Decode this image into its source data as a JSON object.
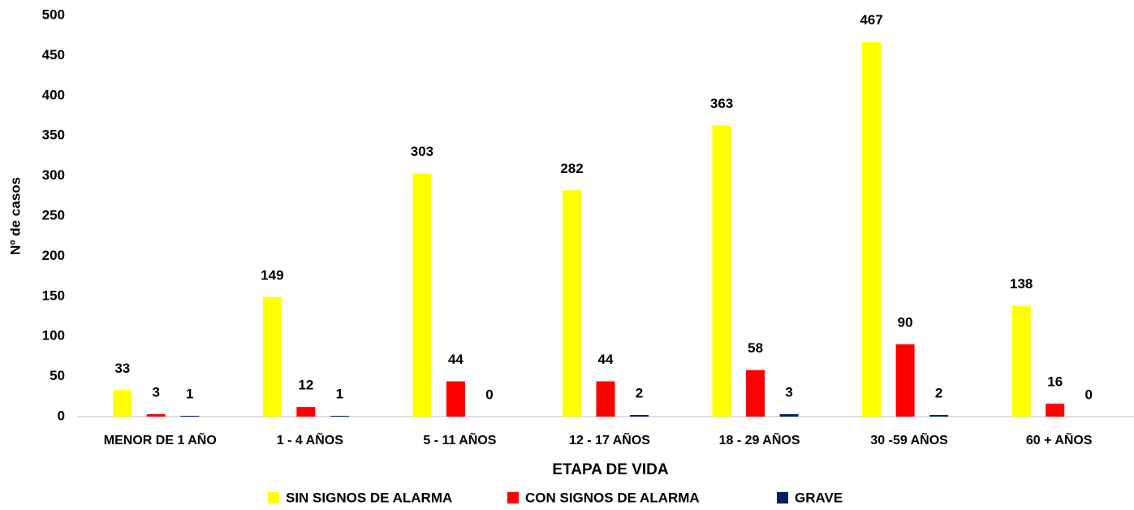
{
  "chart_data": {
    "type": "bar",
    "x_label": "ETAPA DE VIDA",
    "y_label": "Nº de casos",
    "categories": [
      "MENOR DE 1 AÑO",
      "1 - 4 AÑOS",
      "5 - 11 AÑOS",
      "12 - 17 AÑOS",
      "18 - 29 AÑOS",
      "30 -59 AÑOS",
      "60 + AÑOS"
    ],
    "series": [
      {
        "name": "SIN SIGNOS DE ALARMA",
        "color": "#ffff00",
        "values": [
          33,
          149,
          303,
          282,
          363,
          467,
          138
        ]
      },
      {
        "name": "CON SIGNOS DE ALARMA",
        "color": "#ff0000",
        "values": [
          3,
          12,
          44,
          44,
          58,
          90,
          16
        ]
      },
      {
        "name": "GRAVE",
        "color": "#002060",
        "values": [
          1,
          1,
          0,
          2,
          3,
          2,
          0
        ]
      }
    ],
    "ylim": [
      0,
      500
    ],
    "yticks": [
      0,
      50,
      100,
      150,
      200,
      250,
      300,
      350,
      400,
      450,
      500
    ],
    "grid": false
  }
}
